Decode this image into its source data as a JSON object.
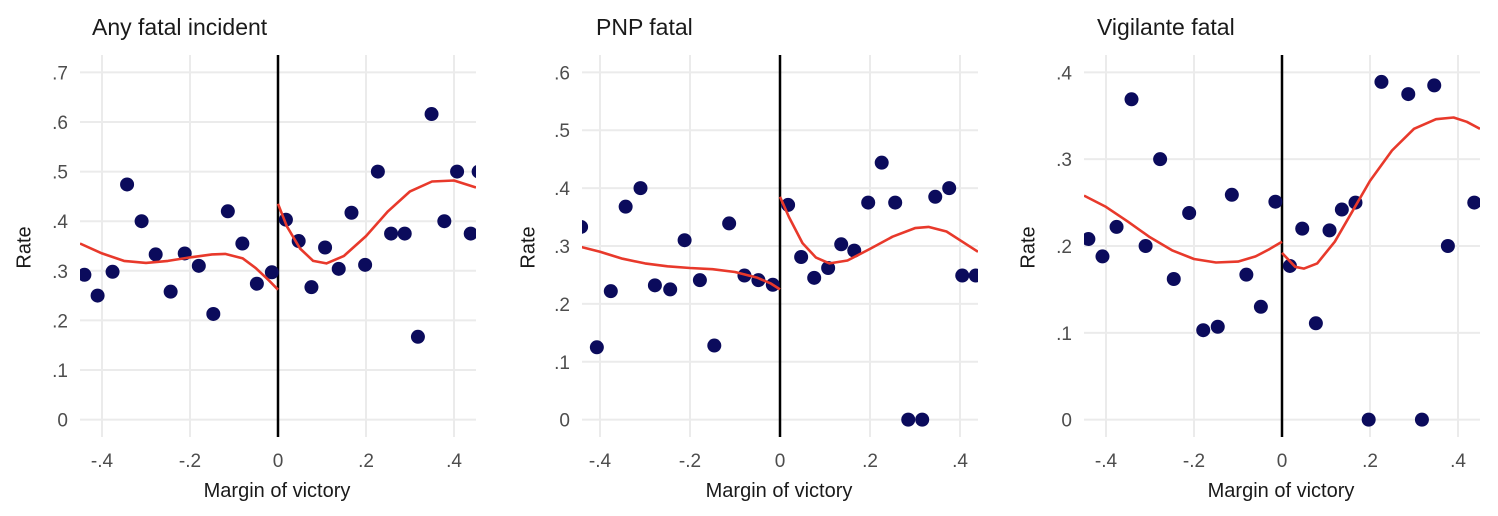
{
  "colors": {
    "point": "#0b0b5c",
    "curve": "#e8392b",
    "grid": "#ebebeb",
    "cutoff": "#000000",
    "tick": "#4d4d4d"
  },
  "chart_data": [
    {
      "type": "scatter",
      "title": "Any fatal incident",
      "xlabel": "Margin of victory",
      "ylabel": "Rate",
      "xlim": [
        -0.45,
        0.45
      ],
      "ylim": [
        -0.035,
        0.735
      ],
      "xticks": [
        -0.4,
        -0.2,
        0,
        0.2,
        0.4
      ],
      "xtick_labels": [
        "-.4",
        "-.2",
        "0",
        ".2",
        ".4"
      ],
      "yticks": [
        0,
        0.1,
        0.2,
        0.3,
        0.4,
        0.5,
        0.6,
        0.7
      ],
      "ytick_labels": [
        "0",
        ".1",
        ".2",
        ".3",
        ".4",
        ".5",
        ".6",
        ".7"
      ],
      "grid": true,
      "cutoff_line_x": 0,
      "points": {
        "x": [
          -0.44,
          -0.41,
          -0.376,
          -0.343,
          -0.31,
          -0.278,
          -0.244,
          -0.212,
          -0.18,
          -0.147,
          -0.114,
          -0.081,
          -0.048,
          -0.014,
          0.018,
          0.047,
          0.076,
          0.107,
          0.138,
          0.167,
          0.198,
          0.227,
          0.257,
          0.288,
          0.318,
          0.349,
          0.378,
          0.407,
          0.438,
          0.456
        ],
        "y": [
          0.292,
          0.25,
          0.298,
          0.474,
          0.4,
          0.333,
          0.258,
          0.335,
          0.31,
          0.213,
          0.42,
          0.355,
          0.274,
          0.297,
          0.403,
          0.36,
          0.267,
          0.347,
          0.304,
          0.417,
          0.312,
          0.5,
          0.375,
          0.375,
          0.167,
          0.616,
          0.4,
          0.5,
          0.375,
          0.5
        ]
      },
      "fit_left": {
        "x": [
          -0.45,
          -0.4,
          -0.35,
          -0.3,
          -0.25,
          -0.2,
          -0.15,
          -0.12,
          -0.08,
          -0.05,
          -0.02,
          0
        ],
        "y": [
          0.355,
          0.335,
          0.32,
          0.316,
          0.32,
          0.327,
          0.333,
          0.334,
          0.325,
          0.305,
          0.28,
          0.262
        ]
      },
      "fit_right": {
        "x": [
          0,
          0.02,
          0.05,
          0.08,
          0.11,
          0.15,
          0.2,
          0.25,
          0.3,
          0.35,
          0.4,
          0.45
        ],
        "y": [
          0.435,
          0.39,
          0.345,
          0.32,
          0.315,
          0.33,
          0.37,
          0.42,
          0.46,
          0.48,
          0.482,
          0.468
        ]
      }
    },
    {
      "type": "scatter",
      "title": "PNP fatal",
      "xlabel": "Margin of victory",
      "ylabel": "Rate",
      "xlim": [
        -0.44,
        0.44
      ],
      "ylim": [
        -0.03,
        0.63
      ],
      "xticks": [
        -0.4,
        -0.2,
        0,
        0.2,
        0.4
      ],
      "xtick_labels": [
        "-.4",
        "-.2",
        "0",
        ".2",
        ".4"
      ],
      "yticks": [
        0,
        0.1,
        0.2,
        0.3,
        0.4,
        0.5,
        0.6
      ],
      "ytick_labels": [
        "0",
        ".1",
        ".2",
        ".3",
        ".4",
        ".5",
        ".6"
      ],
      "grid": true,
      "cutoff_line_x": 0,
      "points": {
        "x": [
          -0.442,
          -0.407,
          -0.376,
          -0.343,
          -0.31,
          -0.278,
          -0.244,
          -0.212,
          -0.178,
          -0.146,
          -0.113,
          -0.079,
          -0.048,
          -0.016,
          0.018,
          0.047,
          0.076,
          0.107,
          0.136,
          0.165,
          0.196,
          0.226,
          0.256,
          0.285,
          0.316,
          0.345,
          0.376,
          0.405,
          0.435
        ],
        "y": [
          0.333,
          0.125,
          0.222,
          0.368,
          0.4,
          0.232,
          0.225,
          0.31,
          0.241,
          0.128,
          0.339,
          0.249,
          0.241,
          0.233,
          0.371,
          0.281,
          0.245,
          0.262,
          0.303,
          0.292,
          0.375,
          0.444,
          0.375,
          0.0,
          0.0,
          0.385,
          0.4,
          0.249,
          0.249
        ]
      },
      "fit_left": {
        "x": [
          -0.45,
          -0.4,
          -0.35,
          -0.3,
          -0.25,
          -0.2,
          -0.15,
          -0.1,
          -0.05,
          -0.02,
          0
        ],
        "y": [
          0.3,
          0.29,
          0.278,
          0.27,
          0.265,
          0.262,
          0.26,
          0.255,
          0.245,
          0.235,
          0.225
        ]
      },
      "fit_right": {
        "x": [
          0,
          0.02,
          0.05,
          0.08,
          0.11,
          0.15,
          0.2,
          0.25,
          0.3,
          0.33,
          0.37,
          0.4,
          0.44
        ],
        "y": [
          0.385,
          0.35,
          0.305,
          0.28,
          0.27,
          0.275,
          0.295,
          0.316,
          0.331,
          0.333,
          0.325,
          0.31,
          0.29
        ]
      }
    },
    {
      "type": "scatter",
      "title": "Vigilante fatal",
      "xlabel": "Margin of victory",
      "ylabel": "Rate",
      "xlim": [
        -0.45,
        0.45
      ],
      "ylim": [
        -0.02,
        0.42
      ],
      "xticks": [
        -0.4,
        -0.2,
        0,
        0.2,
        0.4
      ],
      "xtick_labels": [
        "-.4",
        "-.2",
        "0",
        ".2",
        ".4"
      ],
      "yticks": [
        0,
        0.1,
        0.2,
        0.3,
        0.4
      ],
      "ytick_labels": [
        "0",
        ".1",
        ".2",
        ".3",
        ".4"
      ],
      "grid": true,
      "cutoff_line_x": 0,
      "points": {
        "x": [
          -0.44,
          -0.408,
          -0.376,
          -0.342,
          -0.31,
          -0.277,
          -0.246,
          -0.211,
          -0.179,
          -0.146,
          -0.114,
          -0.081,
          -0.048,
          -0.015,
          0.018,
          0.046,
          0.077,
          0.108,
          0.136,
          0.167,
          0.197,
          0.226,
          0.287,
          0.318,
          0.346,
          0.377,
          0.437
        ],
        "y": [
          0.208,
          0.188,
          0.222,
          0.369,
          0.2,
          0.3,
          0.162,
          0.238,
          0.103,
          0.107,
          0.259,
          0.167,
          0.13,
          0.251,
          0.177,
          0.22,
          0.111,
          0.218,
          0.242,
          0.25,
          0.0,
          0.389,
          0.375,
          0.0,
          0.385,
          0.2,
          0.25
        ]
      },
      "fit_left": {
        "x": [
          -0.45,
          -0.4,
          -0.35,
          -0.3,
          -0.25,
          -0.2,
          -0.15,
          -0.1,
          -0.06,
          -0.03,
          0
        ],
        "y": [
          0.258,
          0.245,
          0.228,
          0.21,
          0.195,
          0.185,
          0.181,
          0.182,
          0.188,
          0.196,
          0.205
        ]
      },
      "fit_right": {
        "x": [
          0,
          0.03,
          0.05,
          0.08,
          0.12,
          0.16,
          0.2,
          0.25,
          0.3,
          0.35,
          0.39,
          0.42,
          0.45
        ],
        "y": [
          0.192,
          0.176,
          0.174,
          0.18,
          0.205,
          0.24,
          0.275,
          0.31,
          0.335,
          0.346,
          0.348,
          0.343,
          0.335
        ]
      }
    }
  ],
  "panels": [
    {
      "title": "Any fatal incident",
      "ylabel": "Rate",
      "xlabel": "Margin of victory"
    },
    {
      "title": "PNP fatal",
      "ylabel": "Rate",
      "xlabel": "Margin of victory"
    },
    {
      "title": "Vigilante fatal",
      "ylabel": "Rate",
      "xlabel": "Margin of victory"
    }
  ]
}
